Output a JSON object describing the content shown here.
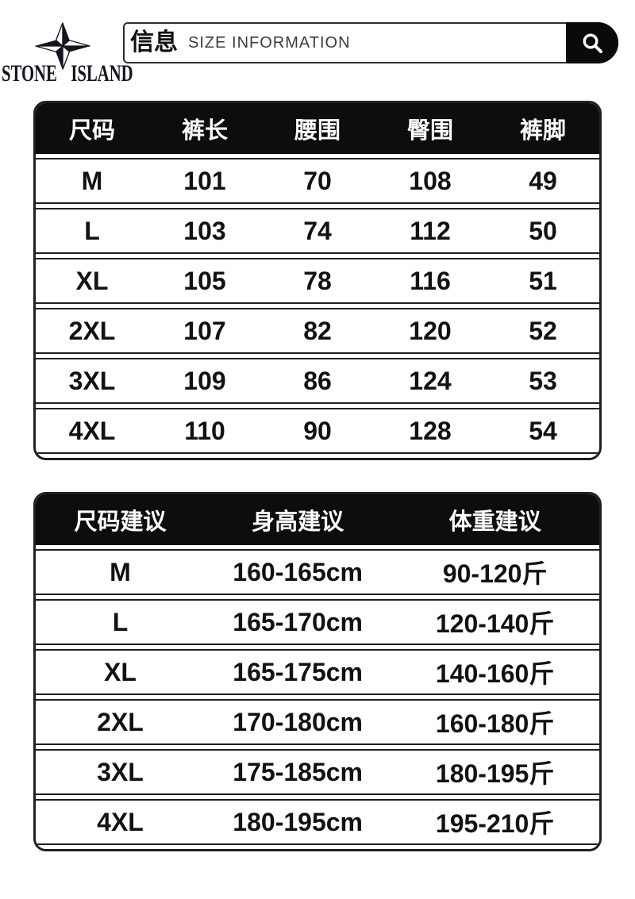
{
  "colors": {
    "ink": "#141414",
    "table_border": "#1f1f1f",
    "table_header_bg": "#0d0d0d",
    "table_header_text": "#ffffff",
    "subtitle_gray": "#3c3c3c",
    "search_pill_bg": "#0a0a0a"
  },
  "logo": {
    "brand_word1": "STONE",
    "brand_word2": "ISLAND",
    "icon": "compass-star-icon"
  },
  "header": {
    "title_cn": "信息",
    "title_en": "SIZE INFORMATION",
    "search_icon": "search-icon"
  },
  "size_table": {
    "headers": [
      "尺码",
      "裤长",
      "腰围",
      "臀围",
      "裤脚"
    ],
    "rows": [
      [
        "M",
        "101",
        "70",
        "108",
        "49"
      ],
      [
        "L",
        "103",
        "74",
        "112",
        "50"
      ],
      [
        "XL",
        "105",
        "78",
        "116",
        "51"
      ],
      [
        "2XL",
        "107",
        "82",
        "120",
        "52"
      ],
      [
        "3XL",
        "109",
        "86",
        "124",
        "53"
      ],
      [
        "4XL",
        "110",
        "90",
        "128",
        "54"
      ]
    ]
  },
  "suggestion_table": {
    "headers": [
      "尺码建议",
      "身高建议",
      "体重建议"
    ],
    "rows": [
      [
        "M",
        "160-165cm",
        "90-120斤"
      ],
      [
        "L",
        "165-170cm",
        "120-140斤"
      ],
      [
        "XL",
        "165-175cm",
        "140-160斤"
      ],
      [
        "2XL",
        "170-180cm",
        "160-180斤"
      ],
      [
        "3XL",
        "175-185cm",
        "180-195斤"
      ],
      [
        "4XL",
        "180-195cm",
        "195-210斤"
      ]
    ]
  }
}
